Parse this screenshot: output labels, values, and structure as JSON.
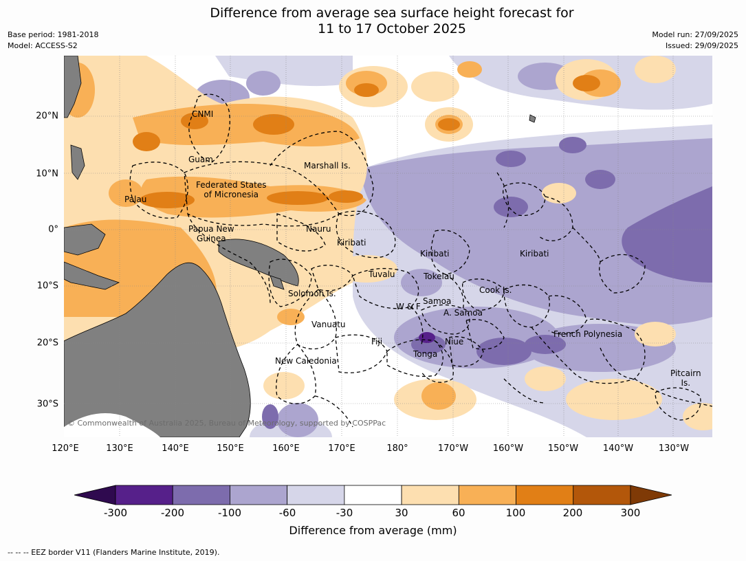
{
  "title_line1": "Difference from average sea surface height forecast for",
  "title_line2": "11 to 17 October 2025",
  "base_period": "Base period: 1981-2018",
  "model": "Model: ACCESS-S2",
  "model_run": "Model run: 27/09/2025",
  "issued": "Issued: 29/09/2025",
  "copyright": "© Commonwealth of Australia 2025, Bureau of Meteorology, supported by COSPPac",
  "lon_labels": [
    "120°E",
    "130°E",
    "140°E",
    "150°E",
    "160°E",
    "170°E",
    "180°",
    "170°W",
    "160°W",
    "150°W",
    "140°W",
    "130°W"
  ],
  "lat_labels": [
    "20°N",
    "10°N",
    "0°",
    "10°S",
    "20°S",
    "30°S"
  ],
  "places": {
    "cnmi": "CNMI",
    "guam": "Guam",
    "marshall": "Marshall Is.",
    "fsm1": "Federated States",
    "fsm2": "of Micronesia",
    "palau": "Palau",
    "nauru": "Nauru",
    "png1": "Papua New",
    "png2": "Guinea",
    "kiribati_w": "Kiribati",
    "kiribati_c": "Kiribati",
    "kiribati_e": "Kiribati",
    "tuvalu": "Tuvalu",
    "tokelau": "Tokelau",
    "solomon": "Solomon Is.",
    "cook": "Cook Is.",
    "wf": "W & F",
    "samoa": "Samoa",
    "asamoa": "A. Samoa",
    "vanuatu": "Vanuatu",
    "fiji": "Fiji",
    "niue": "Niue",
    "tonga": "Tonga",
    "frpoly": "French Polynesia",
    "newcal": "New Caledonia",
    "pitcairn1": "Pitcairn",
    "pitcairn2": "Is."
  },
  "colorbar": {
    "title": "Difference from average (mm)",
    "ticks": [
      "-300",
      "-200",
      "-100",
      "-60",
      "-30",
      "30",
      "60",
      "100",
      "200",
      "300"
    ],
    "colors": [
      "#56208a",
      "#7d6cad",
      "#aca5cf",
      "#d6d6e9",
      "#ffffff",
      "#fddfb0",
      "#f8b056",
      "#e17f16",
      "#b3570a"
    ],
    "under_color": "#2f0a4f",
    "over_color": "#7f3a06"
  },
  "colors": {
    "land": "#808080",
    "purple1": "#d6d6e9",
    "purple2": "#aca5cf",
    "purple3": "#7d6cad",
    "purple4": "#56208a",
    "orange1": "#fddfb0",
    "orange2": "#f8b056",
    "orange3": "#e17f16"
  },
  "footer": "--  --  -- EEZ border V11 (Flanders Marine Institute, 2019)."
}
